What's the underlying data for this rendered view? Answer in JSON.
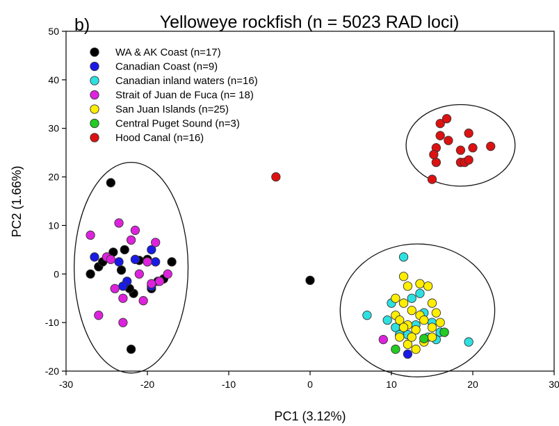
{
  "chart_data": {
    "type": "scatter",
    "panel_label": "b)",
    "title": "Yelloweye rockfish (n = 5023 RAD loci)",
    "xlabel": "PC1 (3.12%)",
    "ylabel": "PC2 (1.66%)",
    "xlim": [
      -30,
      30
    ],
    "ylim": [
      -20,
      50
    ],
    "xticks": [
      -30,
      -20,
      -10,
      0,
      10,
      20,
      30
    ],
    "yticks": [
      -20,
      -10,
      0,
      10,
      20,
      30,
      40,
      50
    ],
    "grid": false,
    "legend_position": "top-left",
    "series": [
      {
        "name": "WA & AK Coast (n=17)",
        "color": "#000000",
        "points": [
          [
            -24.5,
            18.8
          ],
          [
            -27,
            0
          ],
          [
            -26,
            1.5
          ],
          [
            -25.5,
            2.5
          ],
          [
            -24.2,
            4.5
          ],
          [
            -23.2,
            0.8
          ],
          [
            -22.8,
            5
          ],
          [
            -21.7,
            -4
          ],
          [
            -21,
            2.8
          ],
          [
            -20,
            3
          ],
          [
            -19.5,
            -3
          ],
          [
            -18.7,
            -1.5
          ],
          [
            -18,
            -1
          ],
          [
            -17,
            2.5
          ],
          [
            -22,
            -15.5
          ],
          [
            0,
            -1.3
          ],
          [
            -22.2,
            -3
          ]
        ]
      },
      {
        "name": "Canadian Coast (n=9)",
        "color": "#1a1ae6",
        "points": [
          [
            -26.5,
            3.5
          ],
          [
            -23.5,
            2.5
          ],
          [
            -22.5,
            -1.5
          ],
          [
            -21.5,
            3
          ],
          [
            -19.5,
            5
          ],
          [
            -19,
            2.5
          ],
          [
            -19.5,
            -2.5
          ],
          [
            -23,
            -2.5
          ],
          [
            12,
            -16.5
          ]
        ]
      },
      {
        "name": "Canadian inland waters (n=16)",
        "color": "#2ee0e0",
        "points": [
          [
            7,
            -8.5
          ],
          [
            11.5,
            3.5
          ],
          [
            12.5,
            -5
          ],
          [
            13.5,
            -4
          ],
          [
            14,
            -8
          ],
          [
            15,
            -10
          ],
          [
            15.5,
            -13.5
          ],
          [
            19.5,
            -14
          ],
          [
            9.5,
            -9.5
          ],
          [
            10.5,
            -11
          ],
          [
            13,
            -10.5
          ],
          [
            16,
            -12
          ],
          [
            14.5,
            -13
          ],
          [
            12,
            -12.5
          ],
          [
            10,
            -6
          ],
          [
            11,
            -12.5
          ]
        ]
      },
      {
        "name": "Strait of Juan de Fuca (n= 18)",
        "color": "#dd22dd",
        "points": [
          [
            -27,
            8
          ],
          [
            -26,
            -8.5
          ],
          [
            -25,
            3.5
          ],
          [
            -24,
            -3
          ],
          [
            -23.5,
            10.5
          ],
          [
            -23,
            -5
          ],
          [
            -23,
            -10
          ],
          [
            -22,
            7
          ],
          [
            -21.5,
            9
          ],
          [
            -21,
            0
          ],
          [
            -20.5,
            -5.5
          ],
          [
            -20,
            2.5
          ],
          [
            -19.5,
            -2
          ],
          [
            -19,
            6.5
          ],
          [
            -18.5,
            -1.5
          ],
          [
            -17.5,
            0
          ],
          [
            -24.5,
            3
          ],
          [
            9,
            -13.5
          ]
        ]
      },
      {
        "name": "San Juan Islands (n=25)",
        "color": "#ffee00",
        "points": [
          [
            11.5,
            -0.5
          ],
          [
            12,
            -2.5
          ],
          [
            13.5,
            -2
          ],
          [
            14.5,
            -2.5
          ],
          [
            10.5,
            -5
          ],
          [
            11.5,
            -6
          ],
          [
            12.5,
            -7.5
          ],
          [
            13.5,
            -8.5
          ],
          [
            15,
            -6
          ],
          [
            15.5,
            -8
          ],
          [
            10.5,
            -8.5
          ],
          [
            11,
            -9.5
          ],
          [
            12,
            -10.5
          ],
          [
            13,
            -11.5
          ],
          [
            14,
            -9.5
          ],
          [
            15,
            -11
          ],
          [
            16,
            -10
          ],
          [
            11,
            -13
          ],
          [
            12,
            -14.5
          ],
          [
            13,
            -15.5
          ],
          [
            14,
            -14
          ],
          [
            15,
            -13
          ],
          [
            16.5,
            -12
          ],
          [
            12.5,
            -13
          ],
          [
            11.5,
            -11
          ]
        ]
      },
      {
        "name": "Central Puget Sound (n=3)",
        "color": "#22cc22",
        "points": [
          [
            10.5,
            -15.5
          ],
          [
            14,
            -13.3
          ],
          [
            16.5,
            -12
          ]
        ]
      },
      {
        "name": "Hood Canal (n=16)",
        "color": "#dd1111",
        "points": [
          [
            -4.2,
            20
          ],
          [
            15,
            19.5
          ],
          [
            15.5,
            23
          ],
          [
            15.5,
            26
          ],
          [
            16,
            28.5
          ],
          [
            16,
            31
          ],
          [
            17,
            27.5
          ],
          [
            16.8,
            32
          ],
          [
            18.5,
            25.5
          ],
          [
            18.5,
            23
          ],
          [
            19,
            23
          ],
          [
            19.5,
            23.5
          ],
          [
            19.5,
            29
          ],
          [
            20,
            26
          ],
          [
            22.2,
            26.3
          ],
          [
            15.2,
            24.6
          ]
        ]
      }
    ],
    "ellipses": [
      {
        "cx": -22,
        "cy": 1.3,
        "rx": 7,
        "ry": 21.7
      },
      {
        "cx": 18.5,
        "cy": 26.5,
        "rx": 6.7,
        "ry": 8.4
      },
      {
        "cx": 13.2,
        "cy": -7.5,
        "rx": 9.5,
        "ry": 13.7
      }
    ]
  }
}
